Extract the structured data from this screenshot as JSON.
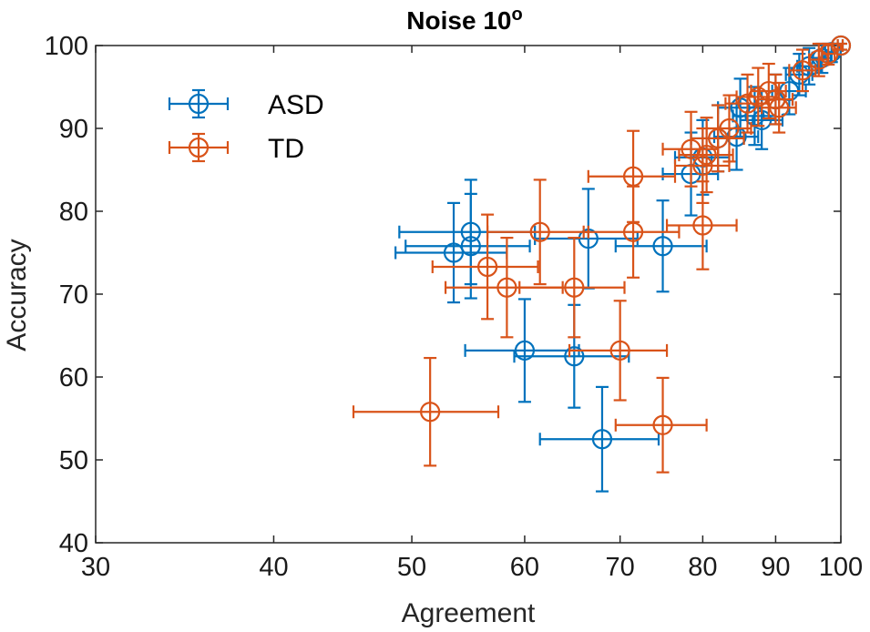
{
  "chart_data": {
    "type": "scatter",
    "title": "Noise 10",
    "title_superscript": "o",
    "xlabel": "Agreement",
    "ylabel": "Accuracy",
    "xscale": "log",
    "xlim": [
      30,
      100
    ],
    "ylim": [
      40,
      100
    ],
    "xticks": [
      30,
      40,
      50,
      60,
      70,
      80,
      90,
      100
    ],
    "yticks": [
      40,
      50,
      60,
      70,
      80,
      90,
      100
    ],
    "xtick_labels": [
      "30",
      "40",
      "50",
      "60",
      "70",
      "80",
      "90",
      "100"
    ],
    "ytick_labels": [
      "40",
      "50",
      "60",
      "70",
      "80",
      "90",
      "100"
    ],
    "legend_position": "top-left",
    "grid": false,
    "series": [
      {
        "name": "ASD",
        "color": "#0072BD",
        "points": [
          {
            "x": 53.5,
            "y": 75.0,
            "xerr": 4.8,
            "yerr": 6.0
          },
          {
            "x": 55.0,
            "y": 77.5,
            "xerr": 6.0,
            "yerr": 6.3
          },
          {
            "x": 55.0,
            "y": 75.8,
            "xerr": 5.5,
            "yerr": 6.3
          },
          {
            "x": 60.0,
            "y": 63.2,
            "xerr": 5.5,
            "yerr": 6.2
          },
          {
            "x": 65.0,
            "y": 62.5,
            "xerr": 6.0,
            "yerr": 6.2
          },
          {
            "x": 66.5,
            "y": 76.7,
            "xerr": 5.5,
            "yerr": 6.0
          },
          {
            "x": 68.0,
            "y": 52.5,
            "xerr": 6.5,
            "yerr": 6.3
          },
          {
            "x": 75.0,
            "y": 75.8,
            "xerr": 5.5,
            "yerr": 5.5
          },
          {
            "x": 78.5,
            "y": 84.5,
            "xerr": 3.5,
            "yerr": 5.0
          },
          {
            "x": 80.0,
            "y": 86.5,
            "xerr": 3.5,
            "yerr": 4.5
          },
          {
            "x": 82.0,
            "y": 88.8,
            "xerr": 3.5,
            "yerr": 4.0
          },
          {
            "x": 84.5,
            "y": 89.0,
            "xerr": 3.0,
            "yerr": 4.0
          },
          {
            "x": 85.0,
            "y": 92.5,
            "xerr": 3.0,
            "yerr": 3.5
          },
          {
            "x": 87.0,
            "y": 91.5,
            "xerr": 3.0,
            "yerr": 3.5
          },
          {
            "x": 88.0,
            "y": 91.0,
            "xerr": 3.0,
            "yerr": 3.5
          },
          {
            "x": 90.0,
            "y": 93.5,
            "xerr": 2.5,
            "yerr": 3.0
          },
          {
            "x": 92.0,
            "y": 94.5,
            "xerr": 2.5,
            "yerr": 2.8
          },
          {
            "x": 93.5,
            "y": 96.5,
            "xerr": 2.0,
            "yerr": 2.5
          },
          {
            "x": 95.0,
            "y": 97.5,
            "xerr": 1.8,
            "yerr": 2.2
          },
          {
            "x": 97.0,
            "y": 98.5,
            "xerr": 1.5,
            "yerr": 1.8
          },
          {
            "x": 98.5,
            "y": 99.2,
            "xerr": 1.0,
            "yerr": 1.2
          },
          {
            "x": 100.0,
            "y": 100.0,
            "xerr": 0.5,
            "yerr": 0.5
          }
        ]
      },
      {
        "name": "TD",
        "color": "#D95319",
        "points": [
          {
            "x": 51.5,
            "y": 55.8,
            "xerr": 6.0,
            "yerr": 6.5
          },
          {
            "x": 56.5,
            "y": 73.3,
            "xerr": 4.8,
            "yerr": 6.3
          },
          {
            "x": 58.3,
            "y": 70.8,
            "xerr": 5.5,
            "yerr": 6.0
          },
          {
            "x": 61.5,
            "y": 77.5,
            "xerr": 5.0,
            "yerr": 6.3
          },
          {
            "x": 65.0,
            "y": 70.8,
            "xerr": 5.5,
            "yerr": 6.0
          },
          {
            "x": 70.0,
            "y": 63.2,
            "xerr": 5.5,
            "yerr": 6.0
          },
          {
            "x": 71.5,
            "y": 84.2,
            "xerr": 5.0,
            "yerr": 5.5
          },
          {
            "x": 71.5,
            "y": 77.5,
            "xerr": 5.5,
            "yerr": 5.5
          },
          {
            "x": 75.0,
            "y": 54.2,
            "xerr": 5.5,
            "yerr": 5.7
          },
          {
            "x": 80.0,
            "y": 78.3,
            "xerr": 4.5,
            "yerr": 5.3
          },
          {
            "x": 78.5,
            "y": 87.5,
            "xerr": 3.5,
            "yerr": 4.5
          },
          {
            "x": 80.0,
            "y": 85.5,
            "xerr": 3.5,
            "yerr": 4.5
          },
          {
            "x": 80.5,
            "y": 86.8,
            "xerr": 3.5,
            "yerr": 4.5
          },
          {
            "x": 82.0,
            "y": 88.8,
            "xerr": 3.5,
            "yerr": 4.0
          },
          {
            "x": 83.5,
            "y": 90.0,
            "xerr": 3.0,
            "yerr": 4.0
          },
          {
            "x": 86.0,
            "y": 93.0,
            "xerr": 3.0,
            "yerr": 3.5
          },
          {
            "x": 87.5,
            "y": 93.8,
            "xerr": 3.0,
            "yerr": 3.5
          },
          {
            "x": 89.0,
            "y": 94.5,
            "xerr": 2.5,
            "yerr": 3.3
          },
          {
            "x": 90.0,
            "y": 93.5,
            "xerr": 2.5,
            "yerr": 3.0
          },
          {
            "x": 90.5,
            "y": 92.5,
            "xerr": 2.5,
            "yerr": 3.0
          },
          {
            "x": 94.0,
            "y": 97.0,
            "xerr": 2.0,
            "yerr": 2.5
          },
          {
            "x": 96.5,
            "y": 98.3,
            "xerr": 1.5,
            "yerr": 2.0
          },
          {
            "x": 98.0,
            "y": 99.0,
            "xerr": 1.0,
            "yerr": 1.3
          },
          {
            "x": 100.0,
            "y": 100.0,
            "xerr": 0.5,
            "yerr": 0.5
          }
        ]
      }
    ]
  }
}
